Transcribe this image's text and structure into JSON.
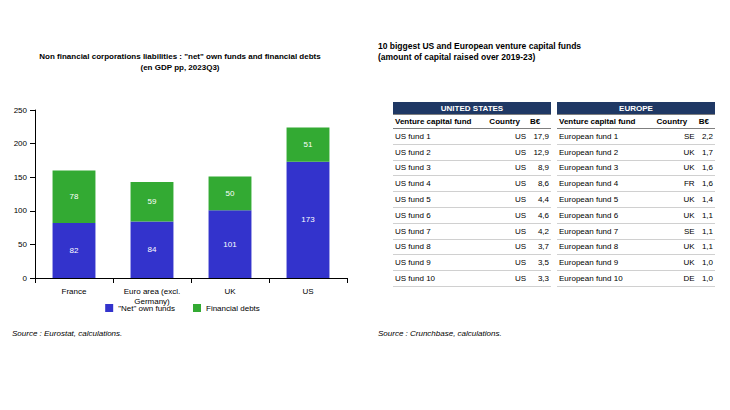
{
  "chart_data": {
    "type": "bar",
    "title": "Non financial corporations liabilities : \"net\" own funds and financial debts\n(en GDP pp, 2023Q3)",
    "categories": [
      "France",
      "Euro area (excl.\nGermany)",
      "UK",
      "US"
    ],
    "series": [
      {
        "name": "\"Net\" own funds",
        "color": "#3333cc",
        "values": [
          82,
          84,
          101,
          173
        ]
      },
      {
        "name": "Financial debts",
        "color": "#33aa33",
        "values": [
          78,
          59,
          50,
          51
        ]
      }
    ],
    "ylim": [
      0,
      250
    ],
    "yticks": [
      0,
      50,
      100,
      150,
      200,
      250
    ],
    "stacked": true,
    "data_labels": true,
    "grid": false,
    "legend": "bottom"
  },
  "sources": {
    "chart": "Source : Eurostat, calculations.",
    "tables": "Source : Crunchbase, calculations."
  },
  "tables": {
    "title": "10 biggest US and European venture capital funds\n(amount of capital raised over 2019-23)",
    "panels": [
      {
        "heading": "UNITED STATES",
        "columns": [
          "Venture capital fund",
          "Country",
          "B€"
        ],
        "rows": [
          [
            "US fund 1",
            "US",
            "17,9"
          ],
          [
            "US fund 2",
            "US",
            "12,9"
          ],
          [
            "US fund 3",
            "US",
            "8,9"
          ],
          [
            "US fund 4",
            "US",
            "8,6"
          ],
          [
            "US fund 5",
            "US",
            "4,4"
          ],
          [
            "US fund 6",
            "US",
            "4,6"
          ],
          [
            "US fund 7",
            "US",
            "4,2"
          ],
          [
            "US fund 8",
            "US",
            "3,7"
          ],
          [
            "US fund 9",
            "US",
            "3,5"
          ],
          [
            "US fund 10",
            "US",
            "3,3"
          ]
        ]
      },
      {
        "heading": "EUROPE",
        "columns": [
          "Venture capital fund",
          "Country",
          "B€"
        ],
        "rows": [
          [
            "European fund 1",
            "SE",
            "2,2"
          ],
          [
            "European fund 2",
            "UK",
            "1,7"
          ],
          [
            "European fund 3",
            "UK",
            "1,6"
          ],
          [
            "European fund 4",
            "FR",
            "1,6"
          ],
          [
            "European fund 5",
            "UK",
            "1,4"
          ],
          [
            "European fund 6",
            "UK",
            "1,1"
          ],
          [
            "European fund 7",
            "SE",
            "1,1"
          ],
          [
            "European fund 8",
            "UK",
            "1,1"
          ],
          [
            "European fund 9",
            "UK",
            "1,0"
          ],
          [
            "European fund 10",
            "DE",
            "1,0"
          ]
        ]
      }
    ]
  }
}
